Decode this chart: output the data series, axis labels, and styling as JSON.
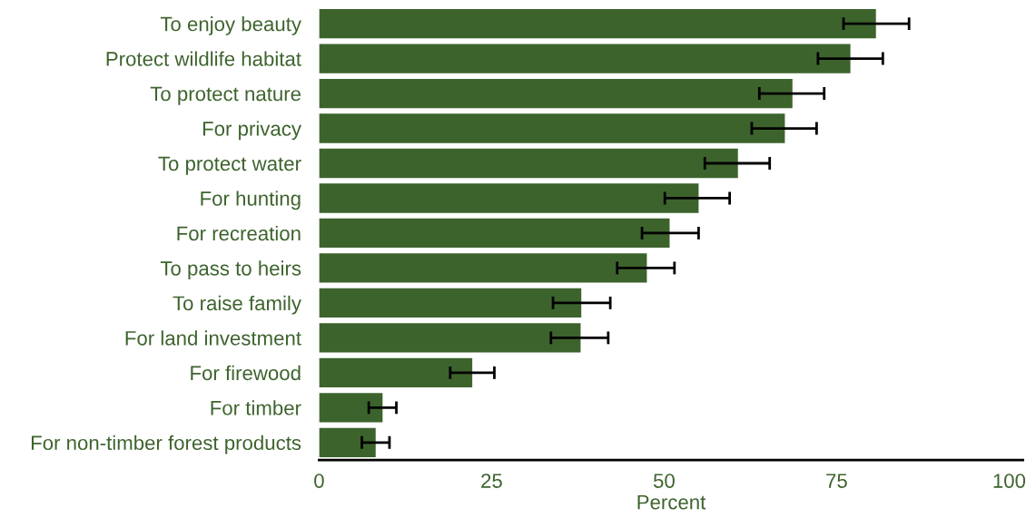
{
  "chart_data": {
    "type": "bar",
    "orientation": "horizontal",
    "xlabel": "Percent",
    "categories": [
      "To enjoy beauty",
      "Protect wildlife habitat",
      "To protect nature",
      "For privacy",
      "To protect water",
      "For hunting",
      "For recreation",
      "To pass to heirs",
      "To raise family",
      "For land investment",
      "For firewood",
      "For timber",
      "For non-timber forest products"
    ],
    "values": [
      80.7,
      77.0,
      68.6,
      67.5,
      60.7,
      55.0,
      50.8,
      47.5,
      38.0,
      37.9,
      22.2,
      9.2,
      8.2
    ],
    "errors": [
      [
        76.0,
        85.5
      ],
      [
        72.3,
        81.7
      ],
      [
        63.8,
        73.2
      ],
      [
        62.7,
        72.1
      ],
      [
        55.9,
        65.3
      ],
      [
        50.1,
        59.5
      ],
      [
        46.8,
        55.0
      ],
      [
        43.2,
        51.5
      ],
      [
        33.9,
        42.2
      ],
      [
        33.6,
        41.9
      ],
      [
        19.0,
        25.4
      ],
      [
        7.2,
        11.2
      ],
      [
        6.2,
        10.2
      ]
    ],
    "color": "#3d632d",
    "xlim": [
      0,
      102
    ],
    "xticks": [
      0,
      25,
      50,
      75,
      100
    ],
    "grid": false
  }
}
